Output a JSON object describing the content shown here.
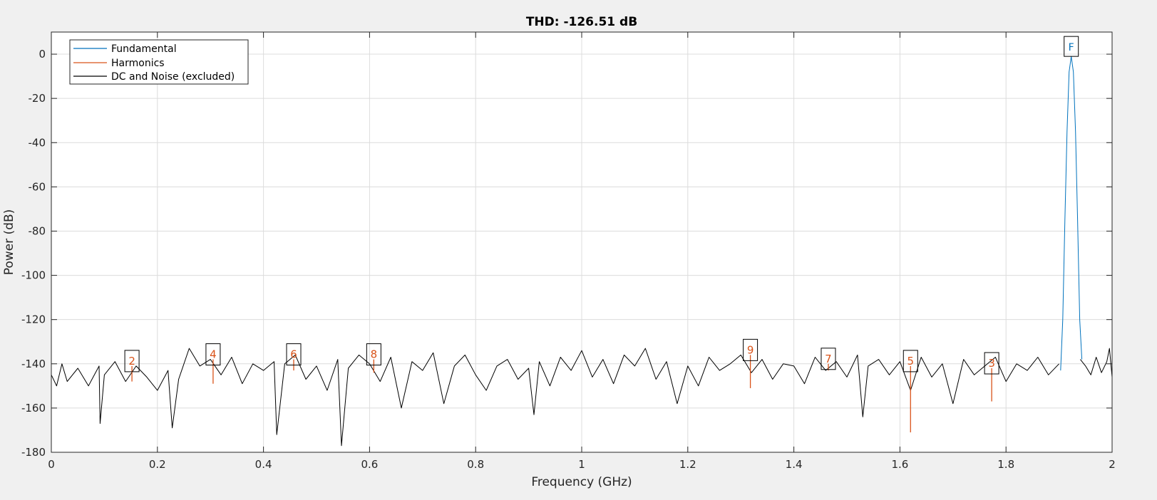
{
  "chart_data": {
    "type": "line",
    "title": "THD: -126.51 dB",
    "xlabel": "Frequency (GHz)",
    "ylabel": "Power (dB)",
    "xlim": [
      0,
      2
    ],
    "ylim": [
      -180,
      10
    ],
    "grid": true,
    "legend_position": "top-left",
    "x_ticks": [
      0,
      0.2,
      0.4,
      0.6,
      0.8,
      1,
      1.2,
      1.4,
      1.6,
      1.8,
      2
    ],
    "x_tick_labels": [
      "0",
      "0.2",
      "0.4",
      "0.6",
      "0.8",
      "1",
      "1.2",
      "1.4",
      "1.6",
      "1.8",
      "2"
    ],
    "y_ticks": [
      0,
      -20,
      -40,
      -60,
      -80,
      -100,
      -120,
      -140,
      -160,
      -180
    ],
    "y_tick_labels": [
      "0",
      "-20",
      "-40",
      "-60",
      "-80",
      "-100",
      "-120",
      "-140",
      "-160",
      "-180"
    ],
    "legend": [
      {
        "label": "Fundamental",
        "color": "#0072bd"
      },
      {
        "label": "Harmonics",
        "color": "#d95319"
      },
      {
        "label": "DC and Noise (excluded)",
        "color": "#000000"
      }
    ],
    "series": [
      {
        "name": "DC and Noise (excluded)",
        "color": "#000000",
        "x": [
          0,
          0.01,
          0.02,
          0.03,
          0.05,
          0.07,
          0.09,
          0.092,
          0.1,
          0.12,
          0.14,
          0.16,
          0.18,
          0.2,
          0.22,
          0.228,
          0.24,
          0.26,
          0.28,
          0.3,
          0.32,
          0.34,
          0.36,
          0.38,
          0.4,
          0.42,
          0.425,
          0.44,
          0.46,
          0.48,
          0.5,
          0.52,
          0.54,
          0.547,
          0.56,
          0.58,
          0.6,
          0.62,
          0.64,
          0.66,
          0.68,
          0.7,
          0.72,
          0.74,
          0.76,
          0.78,
          0.8,
          0.82,
          0.84,
          0.86,
          0.88,
          0.9,
          0.91,
          0.92,
          0.94,
          0.96,
          0.98,
          1.0,
          1.02,
          1.04,
          1.06,
          1.08,
          1.1,
          1.12,
          1.14,
          1.16,
          1.18,
          1.2,
          1.22,
          1.24,
          1.26,
          1.28,
          1.3,
          1.32,
          1.34,
          1.36,
          1.38,
          1.4,
          1.42,
          1.44,
          1.46,
          1.48,
          1.5,
          1.52,
          1.53,
          1.54,
          1.56,
          1.58,
          1.6,
          1.62,
          1.64,
          1.66,
          1.68,
          1.7,
          1.72,
          1.74,
          1.76,
          1.78,
          1.8,
          1.82,
          1.84,
          1.86,
          1.88,
          1.9
        ],
        "values": [
          -145,
          -150,
          -140,
          -148,
          -142,
          -150,
          -141,
          -167,
          -145,
          -139,
          -148,
          -141,
          -146,
          -152,
          -143,
          -169,
          -147,
          -133,
          -141,
          -138,
          -145,
          -137,
          -149,
          -140,
          -143,
          -139,
          -172,
          -140,
          -136,
          -147,
          -141,
          -152,
          -138,
          -177,
          -142,
          -136,
          -140,
          -148,
          -137,
          -160,
          -139,
          -143,
          -135,
          -158,
          -141,
          -136,
          -145,
          -152,
          -141,
          -138,
          -147,
          -142,
          -163,
          -139,
          -150,
          -137,
          -143,
          -134,
          -146,
          -138,
          -149,
          -136,
          -141,
          -133,
          -147,
          -139,
          -158,
          -141,
          -150,
          -137,
          -143,
          -140,
          -136,
          -144,
          -138,
          -147,
          -140,
          -141,
          -149,
          -137,
          -143,
          -139,
          -146,
          -136,
          -164,
          -141,
          -138,
          -145,
          -139,
          -152,
          -137,
          -146,
          -140,
          -158,
          -138,
          -145,
          -141,
          -137,
          -148,
          -140,
          -143,
          -137,
          -145,
          -140
        ]
      },
      {
        "name": "DC and Noise (excluded)",
        "color": "#000000",
        "x": [
          1.94,
          1.95,
          1.96,
          1.97,
          1.98,
          1.99,
          1.995,
          2.0
        ],
        "values": [
          -138,
          -141,
          -145,
          -137,
          -144,
          -139,
          -133,
          -146
        ]
      },
      {
        "name": "Fundamental",
        "color": "#0072bd",
        "x": [
          1.903,
          1.907,
          1.911,
          1.915,
          1.919,
          1.923,
          1.927,
          1.931,
          1.935,
          1.939,
          1.943
        ],
        "values": [
          -143,
          -120,
          -75,
          -35,
          -8,
          -1,
          -8,
          -35,
          -75,
          -120,
          -138
        ]
      },
      {
        "name": "Harmonics",
        "color": "#d95319",
        "markers": [
          {
            "label": "2",
            "x": 0.152,
            "values": [
              -141,
              -148
            ]
          },
          {
            "label": "4",
            "x": 0.305,
            "values": [
              -138,
              -149
            ]
          },
          {
            "label": "6",
            "x": 0.457,
            "values": [
              -138,
              -143
            ]
          },
          {
            "label": "8",
            "x": 0.608,
            "values": [
              -138,
              -144
            ]
          },
          {
            "label": "9",
            "x": 1.318,
            "values": [
              -136,
              -151
            ]
          },
          {
            "label": "7",
            "x": 1.465,
            "values": [
              -140,
              -143
            ]
          },
          {
            "label": "5",
            "x": 1.62,
            "values": [
              -141,
              -171
            ]
          },
          {
            "label": "3",
            "x": 1.773,
            "values": [
              -142,
              -157
            ]
          }
        ]
      }
    ],
    "fundamental_marker": {
      "label": "F",
      "x": 1.923,
      "value": -1
    }
  }
}
